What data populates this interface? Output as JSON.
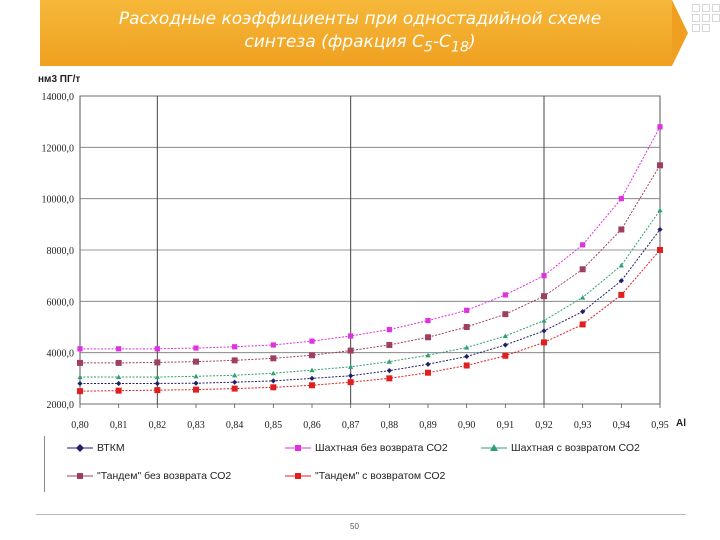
{
  "slide": {
    "title_line1": "Расходные коэффициенты при одностадийной схеме",
    "title_line2_pre": "синтеза (фракция С",
    "title_sub1": "5",
    "title_mid": "-С",
    "title_sub2": "18",
    "title_post": ")",
    "page_number": "50",
    "accent_color": "#f0a020"
  },
  "chart_data": {
    "type": "line",
    "title": "",
    "ylabel": "нм3 ПГ/т",
    "xlabel": "Al",
    "xlim": [
      0.8,
      0.95
    ],
    "ylim": [
      2000,
      14000
    ],
    "grid": true,
    "legend_position": "bottom",
    "x_tick_labels": [
      "0,80",
      "0,81",
      "0,82",
      "0,83",
      "0,84",
      "0,85",
      "0,86",
      "0,87",
      "0,88",
      "0,89",
      "0,90",
      "0,91",
      "0,92",
      "0,93",
      "0,94",
      "0,95"
    ],
    "y_tick_labels": [
      "2000,0",
      "4000,0",
      "6000,0",
      "8000,0",
      "10000,0",
      "12000,0",
      "14000,0"
    ],
    "x": [
      0.8,
      0.81,
      0.82,
      0.83,
      0.84,
      0.85,
      0.86,
      0.87,
      0.88,
      0.89,
      0.9,
      0.91,
      0.92,
      0.93,
      0.94,
      0.95
    ],
    "series": [
      {
        "name": "ВТКМ",
        "color": "#1f1f6f",
        "marker": "diamond",
        "values": [
          2800,
          2800,
          2800,
          2810,
          2850,
          2900,
          3000,
          3100,
          3300,
          3550,
          3850,
          4300,
          4850,
          5600,
          6800,
          8800
        ]
      },
      {
        "name": "Шахтная без возврата СО2",
        "color": "#e030e0",
        "marker": "square",
        "values": [
          4150,
          4150,
          4150,
          4180,
          4230,
          4300,
          4450,
          4650,
          4900,
          5250,
          5650,
          6250,
          7000,
          8200,
          10000,
          12800
        ]
      },
      {
        "name": "Шахтная с возвратом СО2",
        "color": "#30a070",
        "marker": "triangle",
        "values": [
          3050,
          3050,
          3050,
          3080,
          3120,
          3200,
          3320,
          3450,
          3650,
          3900,
          4200,
          4650,
          5250,
          6150,
          7400,
          9550
        ]
      },
      {
        "name": "\"Тандем\" без возврата СО2",
        "color": "#a04060",
        "marker": "square",
        "values": [
          3600,
          3600,
          3620,
          3650,
          3700,
          3780,
          3900,
          4080,
          4300,
          4600,
          5000,
          5500,
          6200,
          7250,
          8800,
          11300
        ]
      },
      {
        "name": "\"Тандем\" с возвратом СО2",
        "color": "#e02020",
        "marker": "square",
        "values": [
          2500,
          2520,
          2540,
          2560,
          2600,
          2650,
          2730,
          2850,
          3000,
          3220,
          3500,
          3880,
          4400,
          5100,
          6250,
          8000
        ]
      }
    ]
  }
}
